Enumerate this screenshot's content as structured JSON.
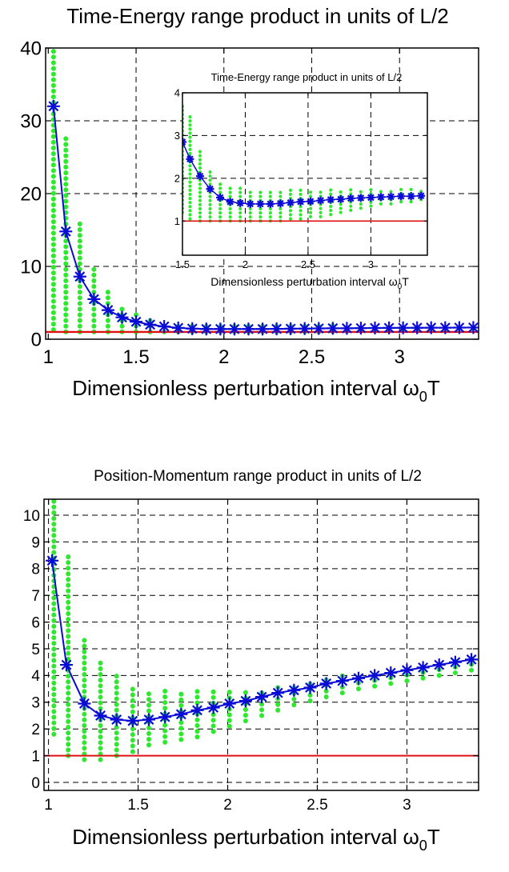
{
  "colors": {
    "band": "#2ee82e",
    "curve": "#0b0bd6",
    "baseline": "#e01010",
    "axis": "#000000"
  },
  "chart_data": [
    {
      "type": "line",
      "title": "Time-Energy range product in units of L/2",
      "xlabel": "Dimensionless perturbation interval ω",
      "xlabel_sub": "0",
      "xlabel_tail": "T",
      "xlim": [
        0.985,
        3.45
      ],
      "ylim": [
        0,
        40
      ],
      "xticks": [
        1,
        1.5,
        2,
        2.5,
        3
      ],
      "xtick_labels": [
        "1",
        "1.5",
        "2",
        "2.5",
        "3"
      ],
      "yticks": [
        0,
        10,
        20,
        30,
        40
      ],
      "ytick_labels": [
        "0",
        "10",
        "20",
        "30",
        "40"
      ],
      "grid": true,
      "baseline": 1,
      "series": [
        {
          "x": [
            1.03,
            1.1,
            1.18,
            1.26,
            1.34,
            1.42,
            1.5,
            1.58,
            1.66,
            1.74,
            1.82,
            1.9,
            1.98,
            2.06,
            2.14,
            2.22,
            2.3,
            2.38,
            2.46,
            2.54,
            2.62,
            2.7,
            2.78,
            2.86,
            2.94,
            3.02,
            3.1,
            3.18,
            3.26,
            3.34,
            3.42
          ],
          "y": [
            32,
            14.8,
            8.6,
            5.5,
            4.0,
            3.0,
            2.4,
            2.0,
            1.75,
            1.55,
            1.45,
            1.4,
            1.4,
            1.4,
            1.4,
            1.4,
            1.42,
            1.44,
            1.46,
            1.48,
            1.5,
            1.5,
            1.52,
            1.54,
            1.55,
            1.56,
            1.57,
            1.58,
            1.58,
            1.59,
            1.6
          ]
        }
      ],
      "band": {
        "x": [
          1.03,
          1.1,
          1.18,
          1.26,
          1.34,
          1.42,
          1.5,
          1.58,
          1.66,
          1.74,
          1.82,
          1.9,
          1.98,
          2.06,
          2.14,
          2.22,
          2.3,
          2.38,
          2.46,
          2.54,
          2.62,
          2.7,
          2.78,
          2.86,
          2.94,
          3.02,
          3.1,
          3.18,
          3.26,
          3.34,
          3.42
        ],
        "low": [
          1.3,
          1.0,
          1.0,
          1.0,
          1.0,
          1.0,
          1.0,
          1.0,
          1.0,
          1.0,
          1.0,
          1.0,
          1.0,
          1.0,
          1.0,
          1.0,
          1.0,
          1.0,
          1.0,
          1.0,
          1.05,
          1.1,
          1.15,
          1.2,
          1.25,
          1.3,
          1.35,
          1.4,
          1.4,
          1.45,
          1.45
        ],
        "high": [
          40,
          28,
          16,
          10.2,
          6.8,
          4.7,
          3.6,
          2.8,
          2.3,
          2.0,
          1.9,
          1.85,
          1.85,
          1.85,
          1.85,
          1.85,
          1.85,
          1.85,
          1.85,
          1.85,
          1.85,
          1.85,
          1.85,
          1.85,
          1.85,
          1.85,
          1.85,
          1.85,
          1.85,
          1.85,
          1.85
        ]
      },
      "inset": {
        "title": "Time-Energy range product in units of L/2",
        "xlabel": "Dimensionless perturbation interval ω",
        "xlabel_sub": "0",
        "xlabel_tail": "T",
        "xlim": [
          1.5,
          3.45
        ],
        "ylim": [
          0.2,
          4
        ],
        "xticks": [
          1.5,
          2,
          2.5,
          3
        ],
        "xtick_labels": [
          "1.5",
          "2",
          "2.5",
          "3"
        ],
        "yticks": [
          1,
          2,
          3,
          4
        ],
        "ytick_labels": [
          "1",
          "2",
          "3",
          "4"
        ],
        "grid": true,
        "baseline": 1,
        "series": [
          {
            "x": [
              1.5,
              1.56,
              1.64,
              1.72,
              1.8,
              1.88,
              1.96,
              2.04,
              2.12,
              2.2,
              2.28,
              2.36,
              2.44,
              2.52,
              2.6,
              2.68,
              2.76,
              2.84,
              2.92,
              3.0,
              3.08,
              3.16,
              3.24,
              3.32,
              3.4
            ],
            "y": [
              2.85,
              2.45,
              2.05,
              1.75,
              1.55,
              1.45,
              1.42,
              1.4,
              1.4,
              1.4,
              1.41,
              1.43,
              1.45,
              1.46,
              1.48,
              1.5,
              1.51,
              1.53,
              1.54,
              1.55,
              1.56,
              1.57,
              1.58,
              1.58,
              1.59
            ]
          }
        ],
        "band": {
          "x": [
            1.5,
            1.56,
            1.64,
            1.72,
            1.8,
            1.88,
            1.96,
            2.04,
            2.12,
            2.2,
            2.28,
            2.36,
            2.44,
            2.52,
            2.6,
            2.68,
            2.76,
            2.84,
            2.92,
            3.0,
            3.08,
            3.16,
            3.24,
            3.32,
            3.4
          ],
          "low": [
            1.2,
            1.05,
            1.0,
            1.0,
            1.0,
            1.0,
            1.0,
            1.0,
            1.0,
            1.0,
            1.0,
            1.05,
            1.05,
            1.1,
            1.1,
            1.15,
            1.2,
            1.25,
            1.3,
            1.35,
            1.4,
            1.4,
            1.45,
            1.45,
            1.5
          ],
          "high": [
            3.7,
            3.5,
            2.7,
            2.2,
            1.9,
            1.8,
            1.78,
            1.76,
            1.76,
            1.76,
            1.76,
            1.76,
            1.76,
            1.76,
            1.76,
            1.76,
            1.76,
            1.76,
            1.76,
            1.76,
            1.76,
            1.76,
            1.76,
            1.76,
            1.76
          ]
        }
      }
    },
    {
      "type": "line",
      "title": "Position-Momentum range product in units of L/2",
      "xlabel": "Dimensionless perturbation interval ω",
      "xlabel_sub": "0",
      "xlabel_tail": "T",
      "xlim": [
        0.975,
        3.4
      ],
      "ylim": [
        -0.3,
        10.6
      ],
      "xticks": [
        1,
        1.5,
        2,
        2.5,
        3
      ],
      "xtick_labels": [
        "1",
        "1.5",
        "2",
        "2.5",
        "3"
      ],
      "yticks": [
        0,
        1,
        2,
        3,
        4,
        5,
        6,
        7,
        8,
        9,
        10
      ],
      "ytick_labels": [
        "0",
        "1",
        "2",
        "3",
        "4",
        "5",
        "6",
        "7",
        "8",
        "9",
        "10"
      ],
      "grid": true,
      "baseline": 1,
      "series": [
        {
          "x": [
            1.02,
            1.1,
            1.2,
            1.29,
            1.38,
            1.47,
            1.56,
            1.65,
            1.74,
            1.83,
            1.92,
            2.01,
            2.1,
            2.19,
            2.28,
            2.37,
            2.46,
            2.55,
            2.64,
            2.73,
            2.82,
            2.91,
            3.0,
            3.09,
            3.18,
            3.27,
            3.36
          ],
          "y": [
            8.3,
            4.4,
            2.95,
            2.5,
            2.35,
            2.3,
            2.35,
            2.45,
            2.55,
            2.7,
            2.8,
            2.95,
            3.05,
            3.2,
            3.35,
            3.45,
            3.55,
            3.7,
            3.8,
            3.9,
            4.0,
            4.1,
            4.2,
            4.3,
            4.4,
            4.5,
            4.6
          ]
        }
      ],
      "band": {
        "x": [
          1.03,
          1.11,
          1.2,
          1.29,
          1.38,
          1.47,
          1.56,
          1.65,
          1.74,
          1.83,
          1.92,
          2.01,
          2.1,
          2.19,
          2.28,
          2.37,
          2.46,
          2.55,
          2.64,
          2.73,
          2.82,
          2.91,
          3.0,
          3.09,
          3.18,
          3.27,
          3.36
        ],
        "low": [
          1.8,
          1.0,
          0.85,
          0.85,
          1.0,
          1.15,
          1.4,
          1.5,
          1.6,
          1.7,
          1.9,
          2.1,
          2.3,
          2.5,
          2.7,
          2.9,
          3.05,
          3.2,
          3.35,
          3.5,
          3.6,
          3.7,
          3.8,
          3.9,
          4.0,
          4.1,
          4.2
        ],
        "high": [
          10.6,
          8.6,
          5.5,
          4.5,
          4.0,
          3.7,
          3.5,
          3.5,
          3.5,
          3.5,
          3.5,
          3.5,
          3.5,
          3.5,
          3.6,
          3.7,
          3.8,
          3.9,
          4.0,
          4.1,
          4.2,
          4.3,
          4.4,
          4.5,
          4.55,
          4.6,
          4.7
        ]
      }
    }
  ]
}
